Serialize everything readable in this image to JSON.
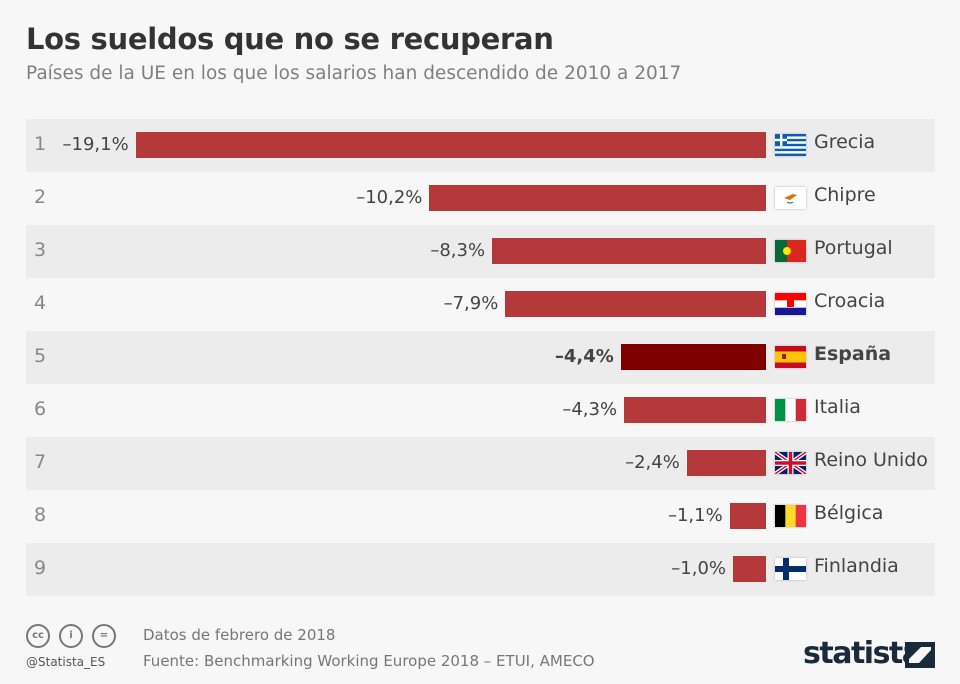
{
  "title": "Los sueldos que no se recuperan",
  "subtitle": "Países de la UE en los que los salarios han descendido de 2010 a 2017",
  "chart_data": {
    "type": "bar",
    "orientation": "horizontal",
    "categories": [
      "Grecia",
      "Chipre",
      "Portugal",
      "Croacia",
      "España",
      "Italia",
      "Reino Unido",
      "Bélgica",
      "Finlandia"
    ],
    "ranks": [
      "1",
      "2",
      "3",
      "4",
      "5",
      "6",
      "7",
      "8",
      "9"
    ],
    "values": [
      -19.1,
      -10.2,
      -8.3,
      -7.9,
      -4.4,
      -4.3,
      -2.4,
      -1.1,
      -1.0
    ],
    "labels": [
      "–19,1%",
      "–10,2%",
      "–8,3%",
      "–7,9%",
      "–4,4%",
      "–4,3%",
      "–2,4%",
      "–1,1%",
      "–1,0%"
    ],
    "highlight": "España",
    "colors": {
      "bar": "#b5393a",
      "highlight": "#800000",
      "row_shade": "#ececec"
    },
    "flag_icons": [
      "greece-flag-icon",
      "cyprus-flag-icon",
      "portugal-flag-icon",
      "croatia-flag-icon",
      "spain-flag-icon",
      "italy-flag-icon",
      "uk-flag-icon",
      "belgium-flag-icon",
      "finland-flag-icon"
    ]
  },
  "footer": {
    "date": "Datos de febrero de 2018",
    "source": "Fuente: Benchmarking Working Europe 2018 – ETUI, AMECO",
    "handle": "@Statista_ES",
    "logo": "statista",
    "cc": [
      "cc",
      "i",
      "="
    ]
  }
}
